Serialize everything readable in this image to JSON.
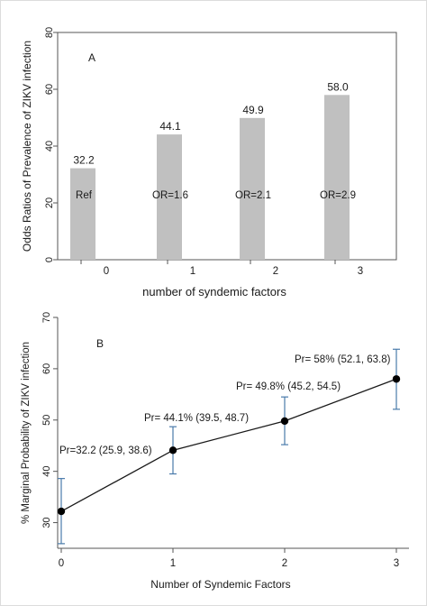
{
  "chart_data": [
    {
      "type": "bar",
      "panel_label": "A",
      "categories": [
        "0",
        "1",
        "2",
        "3"
      ],
      "values": [
        32.2,
        44.1,
        49.9,
        58.0
      ],
      "value_labels": [
        "32.2",
        "44.1",
        "49.9",
        "58.0"
      ],
      "bar_annotations": [
        "Ref",
        "OR=1.6",
        "OR=2.1",
        "OR=2.9"
      ],
      "xlabel": "number of syndemic factors",
      "ylabel": "Odds Ratios of Prevalence of ZIKV infection",
      "ylim": [
        0,
        80
      ],
      "yticks": [
        "0",
        "20",
        "40",
        "60",
        "80"
      ],
      "grid": false,
      "colors": {
        "bar": "#c0c0c0"
      }
    },
    {
      "type": "line",
      "panel_label": "B",
      "x": [
        "0",
        "1",
        "2",
        "3"
      ],
      "values": [
        32.2,
        44.1,
        49.8,
        58
      ],
      "ci_lower": [
        25.9,
        39.5,
        45.2,
        52.1
      ],
      "ci_upper": [
        38.6,
        48.7,
        54.5,
        63.8
      ],
      "point_labels": [
        "Pr=32.2 (25.9, 38.6)",
        "Pr= 44.1% (39.5, 48.7)",
        "Pr= 49.8% (45.2, 54.5)",
        "Pr= 58% (52.1, 63.8)"
      ],
      "xlabel": "Number of Syndemic Factors",
      "ylabel": "% Marginal Probability of ZIKV infection",
      "ylim": [
        25,
        70
      ],
      "yticks": [
        "30",
        "40",
        "50",
        "60",
        "70"
      ],
      "grid": false,
      "colors": {
        "line": "#1a1a1a",
        "marker": "#000000",
        "errorbar": "#4a7bab"
      }
    }
  ]
}
